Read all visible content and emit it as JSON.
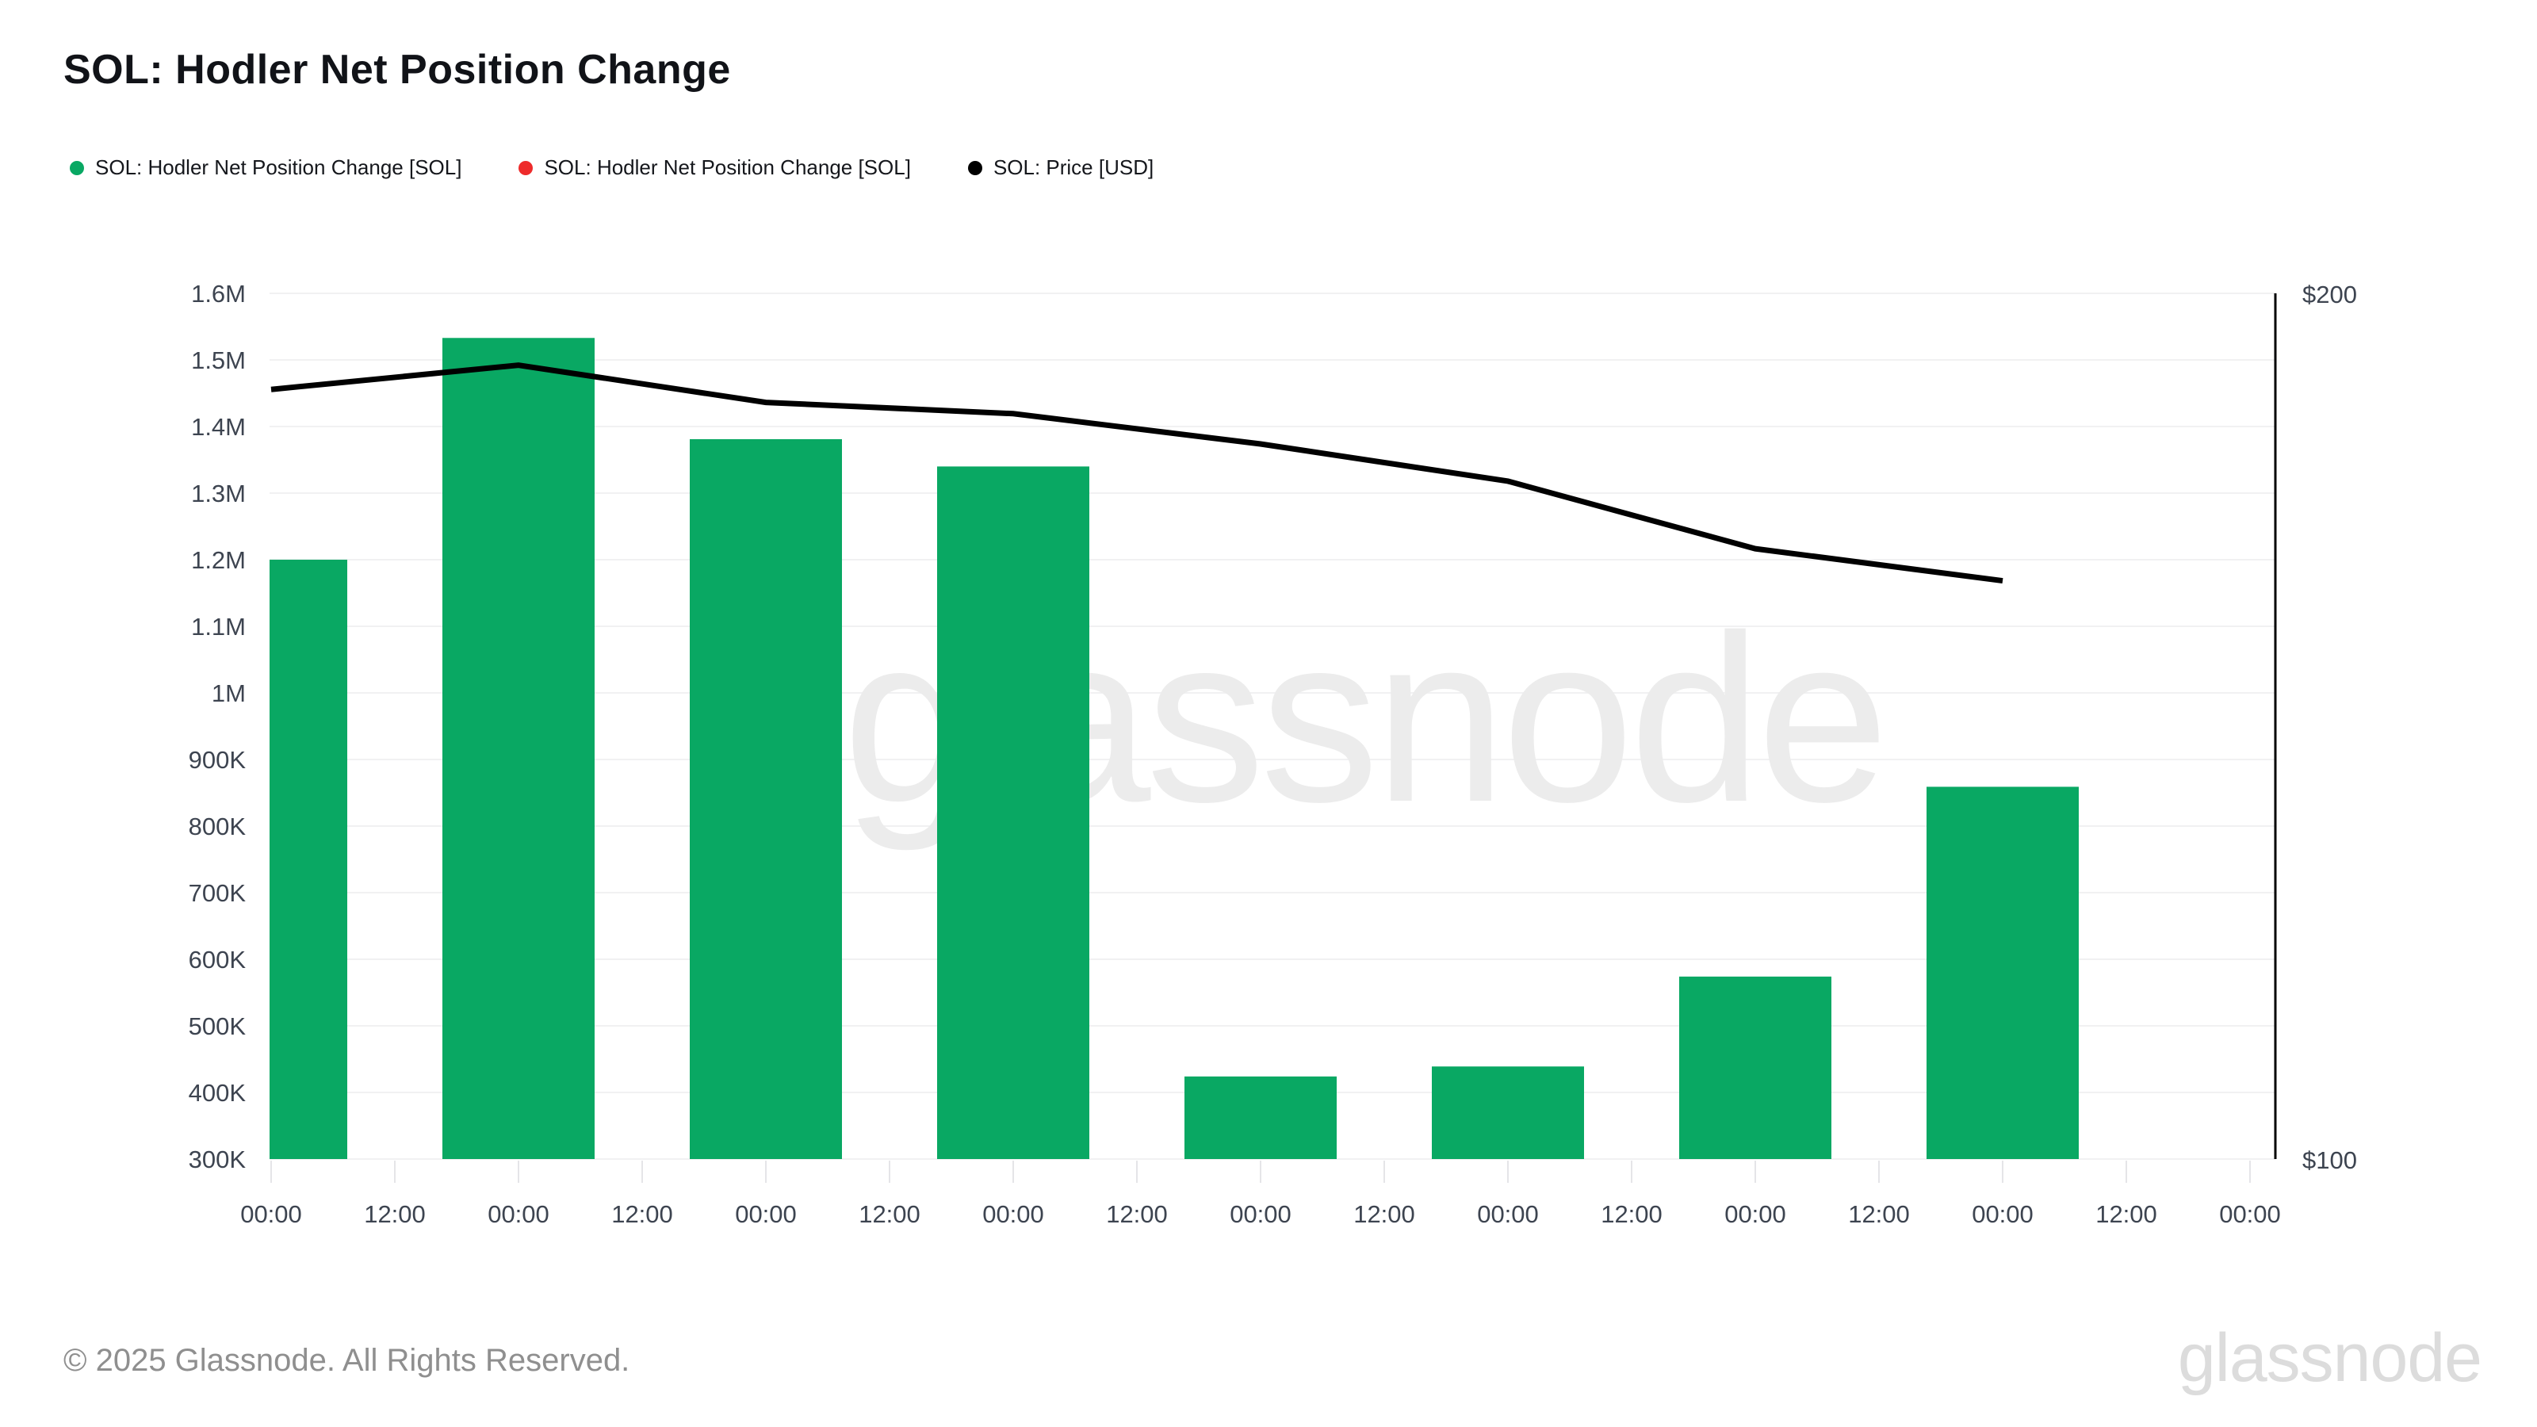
{
  "header": {
    "title": "SOL: Hodler Net Position Change"
  },
  "legend": {
    "items": [
      {
        "label": "SOL: Hodler Net Position Change [SOL]",
        "color": "#09a863",
        "icon": "green-dot"
      },
      {
        "label": "SOL: Hodler Net Position Change [SOL]",
        "color": "#ee2b2b",
        "icon": "red-dot"
      },
      {
        "label": "SOL: Price [USD]",
        "color": "#000000",
        "icon": "black-dot"
      }
    ]
  },
  "chart_data": {
    "type": "bar+line",
    "title": "SOL: Hodler Net Position Change",
    "x_tick_labels": [
      "00:00",
      "12:00",
      "00:00",
      "12:00",
      "00:00",
      "12:00",
      "00:00",
      "12:00",
      "00:00",
      "12:00",
      "00:00",
      "12:00",
      "00:00",
      "12:00",
      "00:00",
      "12:00",
      "00:00"
    ],
    "x_note": "bars are daily, centered on each 00:00 tick; first bar is clipped by the left plot edge",
    "series": [
      {
        "name": "SOL: Hodler Net Position Change [SOL]",
        "type": "bar",
        "color": "#09a863",
        "axis": "left",
        "values": [
          1200000,
          1533000,
          1381000,
          1340000,
          424000,
          439000,
          574000,
          859000
        ]
      },
      {
        "name": "SOL: Price [USD]",
        "type": "line",
        "color": "#000000",
        "axis": "right",
        "values": [
          188.9,
          191.7,
          187.4,
          186.1,
          182.6,
          178.3,
          170.5,
          166.8
        ]
      }
    ],
    "left_axis": {
      "min": 300000,
      "max": 1600000,
      "step": 100000,
      "tick_labels": [
        "300K",
        "400K",
        "500K",
        "600K",
        "700K",
        "800K",
        "900K",
        "1M",
        "1.1M",
        "1.2M",
        "1.3M",
        "1.4M",
        "1.5M",
        "1.6M"
      ]
    },
    "right_axis": {
      "min": 100,
      "max": 200,
      "tick_labels": [
        "$100",
        "$200"
      ]
    },
    "grid": "horizontal",
    "legend_position": "top-left",
    "colors": {
      "bar_green": "#09a863",
      "gridline": "#f1f1f2",
      "tick": "#e5e5e8",
      "axis_text": "#3d4450",
      "right_axis_line": "#000000"
    }
  },
  "watermark": {
    "center_text": "glassnode",
    "corner_text": "glassnode"
  },
  "footer": {
    "copyright": "© 2025 Glassnode. All Rights Reserved."
  }
}
